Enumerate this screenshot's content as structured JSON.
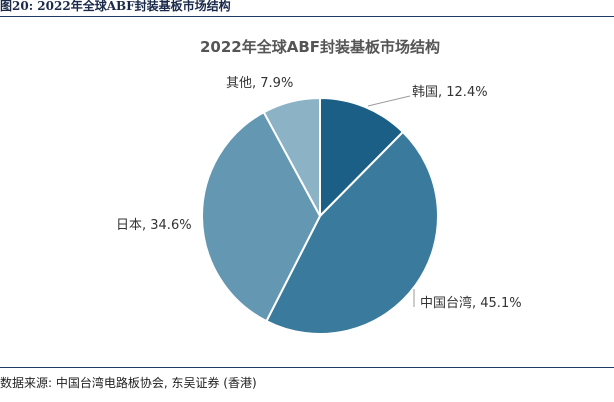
{
  "figure": {
    "caption": "图20:  2022年全球ABF封装基板市场结构"
  },
  "source": {
    "text": "数据来源: 中国台湾电路板协会, 东吴证券 (香港)"
  },
  "chart_data": {
    "type": "pie",
    "title": "2022年全球ABF封装基板市场结构",
    "legend": "none",
    "slices": [
      {
        "label": "韩国",
        "value": 12.4,
        "display": "12.4%",
        "color": "#1b5f86"
      },
      {
        "label": "中国台湾",
        "value": 45.1,
        "display": "45.1%",
        "color": "#3a7a9c"
      },
      {
        "label": "日本",
        "value": 34.6,
        "display": "34.6%",
        "color": "#6497b2"
      },
      {
        "label": "其他",
        "value": 7.9,
        "display": "7.9%",
        "color": "#8cb2c6"
      }
    ]
  }
}
